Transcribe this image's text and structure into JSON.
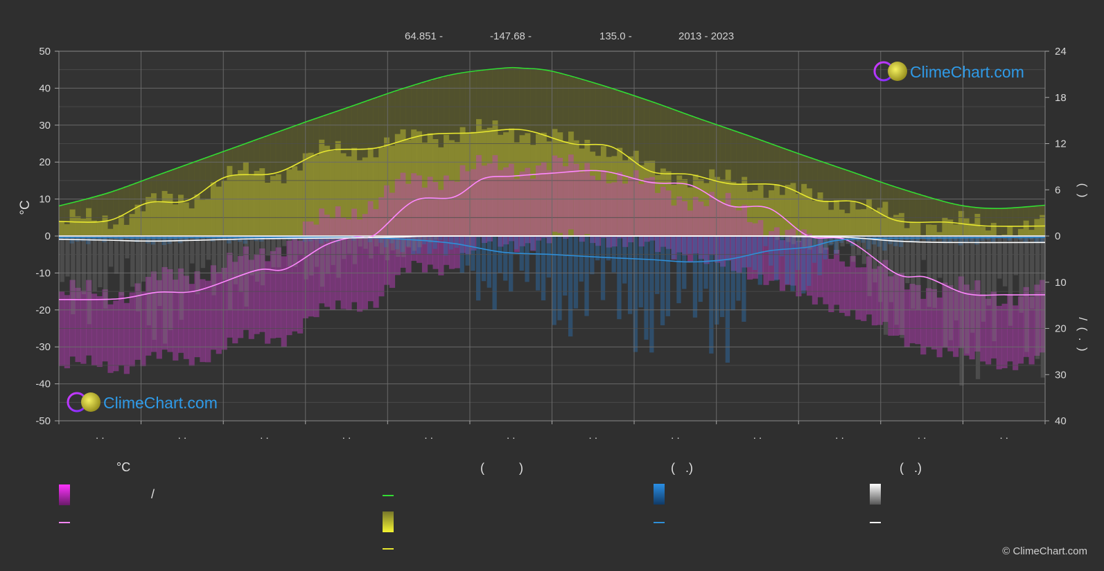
{
  "header": {
    "latitude": "64.851 -",
    "longitude": "-147.68 -",
    "elevation": "135.0 -",
    "years": "2013 - 2023"
  },
  "logo_text": "ClimeChart.com",
  "copyright": "© ClimeChart.com",
  "legend": {
    "col1_heading": "°C",
    "col1_slash": "/",
    "col2_heading": "(          )",
    "col3_heading": "(   .)",
    "col4_heading": "(   .)"
  },
  "chart_data": {
    "type": "area",
    "title": "",
    "x_tick_labels": [
      ". .",
      ". .",
      ". .",
      ". .",
      ". .",
      ". .",
      ". .",
      ". .",
      ". .",
      ". .",
      ". .",
      ". ."
    ],
    "left_axis": {
      "label": "°C",
      "ylim": [
        -50,
        50
      ],
      "ticks": [
        50,
        40,
        30,
        20,
        10,
        0,
        -10,
        -20,
        -30,
        -40,
        -50
      ]
    },
    "right_axis_top": {
      "ticks": [
        24,
        18,
        12,
        6,
        0
      ],
      "range": [
        0,
        24
      ],
      "label": "(  )"
    },
    "right_axis_bottom": {
      "ticks": [
        0,
        10,
        20,
        30,
        40
      ],
      "range": [
        0,
        40
      ],
      "label": "/  (  .  )"
    },
    "month_positions": [
      0,
      0.0833,
      0.1667,
      0.25,
      0.3333,
      0.4167,
      0.5,
      0.5833,
      0.6667,
      0.75,
      0.8333,
      0.9167,
      1.0
    ],
    "series": [
      {
        "key": "daylight",
        "color": "#33dd33",
        "axis": "hours",
        "x": [
          0,
          0.05,
          0.1,
          0.15,
          0.2,
          0.25,
          0.3,
          0.35,
          0.4,
          0.45,
          0.47,
          0.5,
          0.55,
          0.6,
          0.65,
          0.7,
          0.75,
          0.8,
          0.85,
          0.9,
          0.93,
          0.96,
          1.0
        ],
        "y": [
          3.9,
          5.6,
          7.9,
          10.2,
          12.5,
          14.8,
          17.0,
          19.2,
          21.0,
          21.8,
          21.8,
          21.4,
          19.6,
          17.5,
          15.2,
          13.0,
          10.7,
          8.5,
          6.3,
          4.4,
          3.7,
          3.6,
          4.0
        ]
      },
      {
        "key": "sunshine",
        "color": "#e8e830",
        "axis": "hours",
        "x": [
          0,
          0.05,
          0.09,
          0.13,
          0.17,
          0.22,
          0.27,
          0.32,
          0.37,
          0.42,
          0.47,
          0.52,
          0.56,
          0.6,
          0.64,
          0.68,
          0.73,
          0.77,
          0.81,
          0.85,
          0.9,
          0.94,
          1.0
        ],
        "y": [
          1.9,
          2.0,
          4.3,
          4.6,
          7.7,
          8.2,
          11.0,
          11.4,
          13.1,
          13.4,
          13.8,
          12.0,
          11.6,
          8.4,
          8.0,
          6.8,
          6.6,
          4.6,
          4.4,
          2.0,
          1.8,
          1.3,
          1.3
        ]
      },
      {
        "key": "max_temp",
        "color": "#ff88ff",
        "axis": "temp",
        "x": [
          0,
          0.06,
          0.1,
          0.14,
          0.2,
          0.23,
          0.27,
          0.3,
          0.32,
          0.36,
          0.4,
          0.43,
          0.46,
          0.5,
          0.55,
          0.6,
          0.64,
          0.68,
          0.72,
          0.76,
          0.8,
          0.85,
          0.88,
          0.92,
          0.96,
          1.0
        ],
        "y": [
          -17.2,
          -17.0,
          -15.2,
          -14.8,
          -9.3,
          -8.9,
          -2.5,
          -0.2,
          0.3,
          9.5,
          10.5,
          15.5,
          16.2,
          17.0,
          17.6,
          14.5,
          13.8,
          8.2,
          7.5,
          0.0,
          -1.2,
          -10.3,
          -11.2,
          -15.6,
          -15.9,
          -15.9
        ]
      },
      {
        "key": "precipitation",
        "color": "#2f8fd8",
        "axis": "mm",
        "x": [
          0,
          0.1,
          0.2,
          0.3,
          0.35,
          0.4,
          0.45,
          0.5,
          0.55,
          0.6,
          0.64,
          0.68,
          0.72,
          0.76,
          0.8,
          0.9,
          1.0
        ],
        "y": [
          0.3,
          0.4,
          0.3,
          0.3,
          0.7,
          1.6,
          3.5,
          4.0,
          4.6,
          5.1,
          5.6,
          5.0,
          3.2,
          2.4,
          0.7,
          0.4,
          0.3
        ]
      },
      {
        "key": "snow",
        "color": "#ffffff",
        "axis": "mm",
        "x": [
          0,
          0.05,
          0.1,
          0.2,
          0.3,
          0.35,
          0.4,
          0.7,
          0.75,
          0.8,
          0.85,
          0.9,
          1.0
        ],
        "y": [
          0.7,
          0.9,
          1.1,
          0.6,
          0.4,
          0.2,
          0.0,
          0.0,
          0.1,
          0.3,
          1.1,
          1.4,
          1.4
        ]
      }
    ],
    "daily_max_band": {
      "x": [
        0,
        0.05,
        0.1,
        0.15,
        0.2,
        0.25,
        0.3,
        0.35,
        0.4,
        0.45,
        0.5,
        0.55,
        0.6,
        0.65,
        0.7,
        0.75,
        0.8,
        0.85,
        0.9,
        0.95,
        1.0
      ],
      "y": [
        -15,
        -16,
        -12,
        -9,
        -6,
        2,
        7,
        14,
        17,
        19,
        19,
        18,
        13,
        10,
        6,
        -1,
        -5,
        -12,
        -14,
        -16,
        -15
      ]
    }
  }
}
